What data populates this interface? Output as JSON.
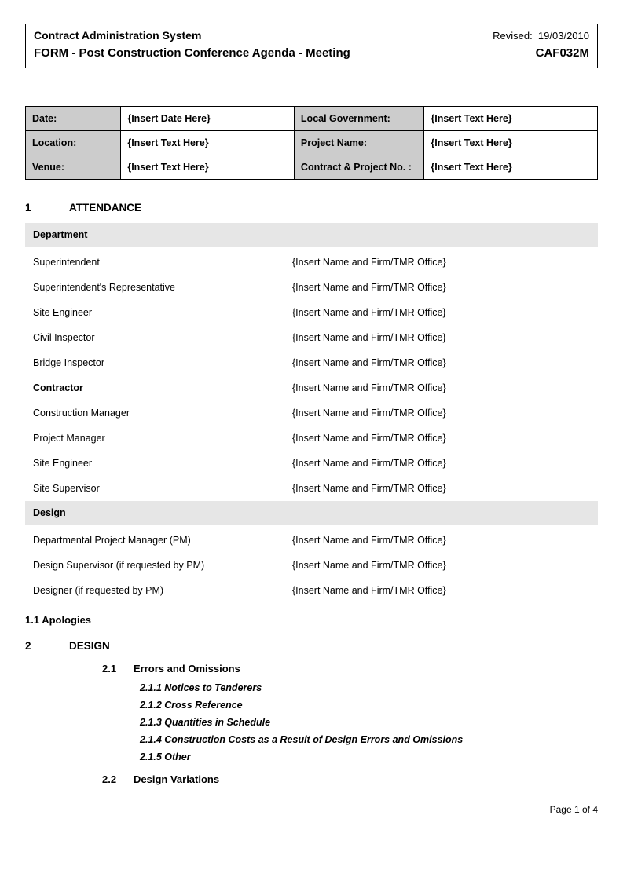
{
  "header": {
    "system_name": "Contract Administration System",
    "revised_label": "Revised:",
    "revised_date": "19/03/2010",
    "form_title": "FORM - Post Construction Conference Agenda - Meeting",
    "form_code": "CAF032M"
  },
  "info": {
    "rows": [
      {
        "l1": "Date:",
        "v1": "{Insert Date Here}",
        "l2": "Local Government:",
        "v2": "{Insert Text Here}"
      },
      {
        "l1": "Location:",
        "v1": "{Insert Text Here}",
        "l2": "Project Name:",
        "v2": "{Insert Text Here}"
      },
      {
        "l1": "Venue:",
        "v1": "{Insert Text Here}",
        "l2": "Contract & Project No. :",
        "v2": "{Insert Text Here}"
      }
    ]
  },
  "sections": {
    "s1_num": "1",
    "s1_title": "ATTENDANCE",
    "s1_1": "1.1   Apologies",
    "s2_num": "2",
    "s2_title": "DESIGN",
    "s2_1_num": "2.1",
    "s2_1_title": "Errors and Omissions",
    "s2_1_items": [
      "2.1.1 Notices to Tenderers",
      "2.1.2 Cross Reference",
      "2.1.3 Quantities in Schedule",
      "2.1.4 Construction Costs as a Result of Design Errors and Omissions",
      "2.1.5 Other"
    ],
    "s2_2_num": "2.2",
    "s2_2_title": "Design Variations"
  },
  "attendance": {
    "group1_header": "Department",
    "group1": [
      {
        "role": "Superintendent",
        "value": "{Insert Name and Firm/TMR Office}",
        "bold": false
      },
      {
        "role": "Superintendent's Representative",
        "value": "{Insert Name and Firm/TMR Office}",
        "bold": false
      },
      {
        "role": "Site Engineer",
        "value": "{Insert Name and Firm/TMR Office}",
        "bold": false
      },
      {
        "role": "Civil Inspector",
        "value": "{Insert Name and Firm/TMR Office}",
        "bold": false
      },
      {
        "role": "Bridge Inspector",
        "value": "{Insert Name and Firm/TMR Office}",
        "bold": false
      },
      {
        "role": "Contractor",
        "value": "{Insert Name and Firm/TMR Office}",
        "bold": true
      },
      {
        "role": "Construction Manager",
        "value": "{Insert Name and Firm/TMR Office}",
        "bold": false
      },
      {
        "role": "Project Manager",
        "value": "{Insert Name and Firm/TMR Office}",
        "bold": false
      },
      {
        "role": "Site Engineer",
        "value": "{Insert Name and Firm/TMR Office}",
        "bold": false
      },
      {
        "role": "Site Supervisor",
        "value": "{Insert Name and Firm/TMR Office}",
        "bold": false
      }
    ],
    "group2_header": "Design",
    "group2": [
      {
        "role": "Departmental Project Manager (PM)",
        "value": "{Insert Name and Firm/TMR Office}",
        "bold": false
      },
      {
        "role": "Design Supervisor (if requested by PM)",
        "value": "{Insert Name and Firm/TMR Office}",
        "bold": false
      },
      {
        "role": "Designer (if requested by PM)",
        "value": "{Insert Name and Firm/TMR Office}",
        "bold": false
      }
    ]
  },
  "footer": {
    "page": "Page 1 of 4"
  },
  "colors": {
    "header_grey": "#cccccc",
    "row_grey": "#e6e6e6",
    "border": "#000000",
    "text": "#000000",
    "background": "#ffffff"
  }
}
